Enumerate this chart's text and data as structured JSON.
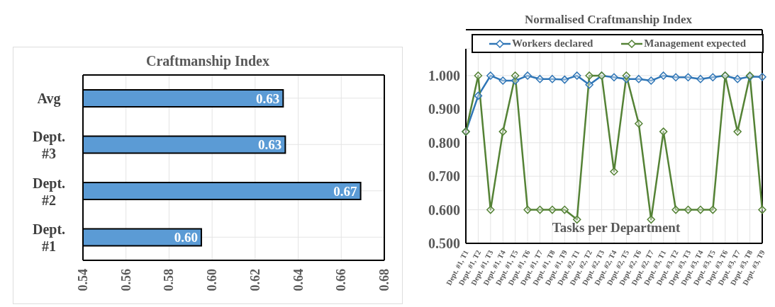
{
  "chart_data": [
    {
      "type": "bar",
      "orientation": "horizontal",
      "title": "Craftmanship Index",
      "categories": [
        "Avg",
        "Dept. #3",
        "Dept. #2",
        "Dept. #1"
      ],
      "values": [
        0.633,
        0.634,
        0.669,
        0.595
      ],
      "value_labels": [
        "0.63",
        "0.63",
        "0.67",
        "0.60"
      ],
      "color": "#5b9bd5",
      "xlim": [
        0.54,
        0.68
      ],
      "xticks": [
        {
          "value": 0.54,
          "label": "0.54"
        },
        {
          "value": 0.56,
          "label": "0.56"
        },
        {
          "value": 0.58,
          "label": "0.58"
        },
        {
          "value": 0.6,
          "label": "0.60"
        },
        {
          "value": 0.62,
          "label": "0.62"
        },
        {
          "value": 0.64,
          "label": "0.64"
        },
        {
          "value": 0.66,
          "label": "0.66"
        },
        {
          "value": 0.68,
          "label": "0.68"
        }
      ],
      "grid": true
    },
    {
      "type": "line",
      "title": "Normalised Craftmanship Index",
      "xlabel": "Tasks per Department",
      "categories": [
        "Dept. #1, T1",
        "Dept. #1, T2",
        "Dept. #1, T3",
        "Dept. #1, T4",
        "Dept. #1, T5",
        "Dept. #1, T6",
        "Dept. #1, T7",
        "Dept. #1, T8",
        "Dept. #1, T9",
        "Dept. #2, T1",
        "Dept. #2, T2",
        "Dept. #2, T3",
        "Dept. #2, T4",
        "Dept. #2, T5",
        "Dept. #2, T6",
        "Dept. #2, T7",
        "Dept. #3, T1",
        "Dept. #3, T2",
        "Dept. #3, T3",
        "Dept. #3, T4",
        "Dept. #3, T5",
        "Dept. #3, T6",
        "Dept. #3, T7",
        "Dept. #3, T8",
        "Dept. #3, T9"
      ],
      "series": [
        {
          "name": "Workers declared",
          "color": "#2e75b6",
          "values": [
            0.833,
            0.94,
            1.0,
            0.985,
            0.985,
            1.0,
            0.99,
            0.99,
            0.988,
            1.0,
            0.973,
            1.0,
            0.995,
            0.99,
            0.99,
            0.985,
            1.0,
            0.995,
            0.995,
            0.99,
            0.995,
            1.0,
            0.99,
            0.997,
            0.996
          ]
        },
        {
          "name": "Management expected",
          "color": "#548235",
          "values": [
            0.833,
            1.0,
            0.6,
            0.833,
            1.0,
            0.6,
            0.6,
            0.6,
            0.6,
            0.571,
            1.0,
            1.0,
            0.714,
            1.0,
            0.857,
            0.571,
            0.833,
            0.6,
            0.6,
            0.6,
            0.6,
            1.0,
            0.833,
            1.0,
            0.6
          ]
        }
      ],
      "ylim": [
        0.5,
        1.08
      ],
      "yticks": [
        {
          "value": 0.5,
          "label": "0.500"
        },
        {
          "value": 0.6,
          "label": "0.600"
        },
        {
          "value": 0.7,
          "label": "0.700"
        },
        {
          "value": 0.8,
          "label": "0.800"
        },
        {
          "value": 0.9,
          "label": "0.900"
        },
        {
          "value": 1.0,
          "label": "1.000"
        }
      ],
      "grid": true,
      "legend": "top",
      "marker": "diamond",
      "line_style": "solid"
    }
  ]
}
